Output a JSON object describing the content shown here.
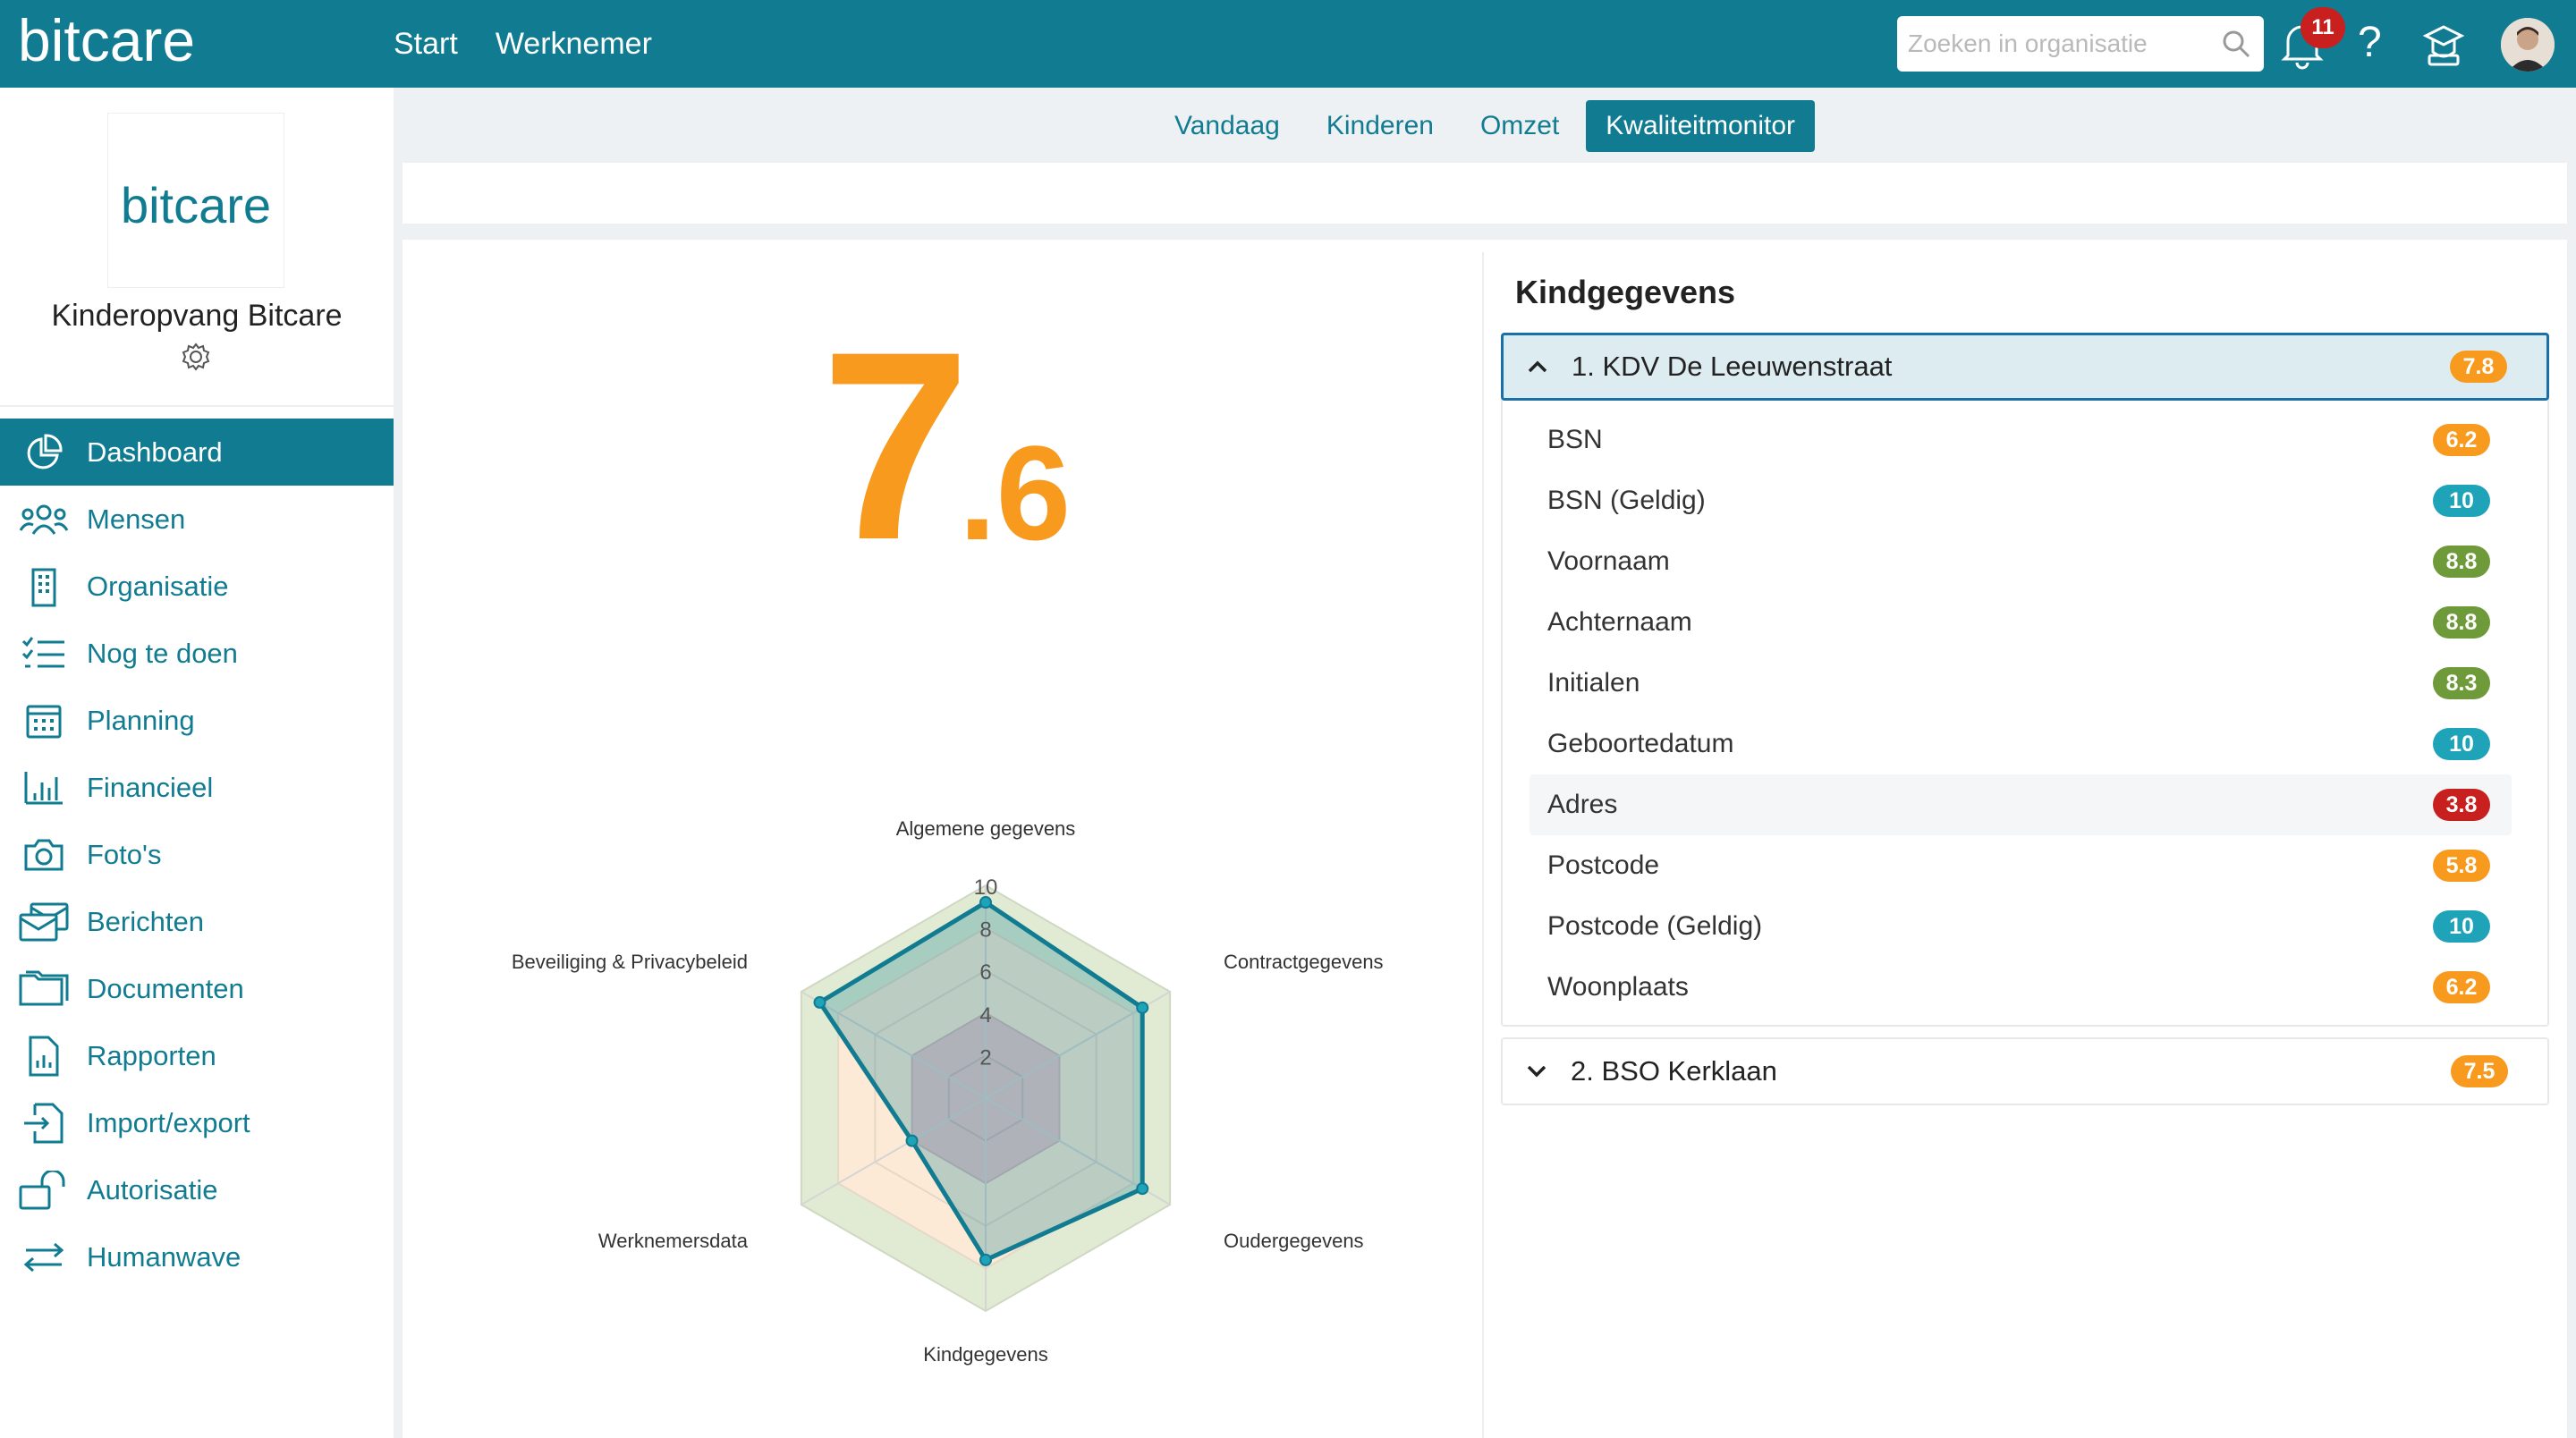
{
  "app": {
    "logo": "bitcare",
    "nav": [
      "Start",
      "Werknemer"
    ],
    "search_placeholder": "Zoeken in organisatie",
    "notifications_count": "11",
    "help": "?",
    "icons": [
      "search-icon",
      "bell-icon",
      "help-icon",
      "graduation-cap-icon",
      "avatar"
    ]
  },
  "sidebar": {
    "logo": "bitcare",
    "org_name": "Kinderopvang Bitcare",
    "items": [
      {
        "label": "Dashboard",
        "icon": "pie-chart-icon",
        "active": true
      },
      {
        "label": "Mensen",
        "icon": "people-icon"
      },
      {
        "label": "Organisatie",
        "icon": "building-icon"
      },
      {
        "label": "Nog te doen",
        "icon": "checklist-icon"
      },
      {
        "label": "Planning",
        "icon": "calendar-icon"
      },
      {
        "label": "Financieel",
        "icon": "bar-chart-icon"
      },
      {
        "label": "Foto's",
        "icon": "camera-icon"
      },
      {
        "label": "Berichten",
        "icon": "messages-icon"
      },
      {
        "label": "Documenten",
        "icon": "folder-icon"
      },
      {
        "label": "Rapporten",
        "icon": "report-icon"
      },
      {
        "label": "Import/export",
        "icon": "import-export-icon"
      },
      {
        "label": "Autorisatie",
        "icon": "unlock-icon"
      },
      {
        "label": "Humanwave",
        "icon": "arrows-icon"
      }
    ]
  },
  "tabs": [
    {
      "label": "Vandaag"
    },
    {
      "label": "Kinderen"
    },
    {
      "label": "Omzet"
    },
    {
      "label": "Kwaliteitmonitor",
      "active": true
    }
  ],
  "score": {
    "integer": "7",
    "decimal": ".6",
    "color": "#f79a1e"
  },
  "chart_data": {
    "type": "radar",
    "axes": [
      "Algemene gegevens",
      "Contractgegevens",
      "Oudergegevens",
      "Kindgegevens",
      "Werknemersdata",
      "Beveiliging & Privacybeleid"
    ],
    "ticks": [
      "2",
      "4",
      "6",
      "8",
      "10"
    ],
    "range": [
      0,
      10
    ],
    "values": [
      9.2,
      8.5,
      8.5,
      7.6,
      4.0,
      9.0
    ],
    "series_color": "#117c91"
  },
  "list": {
    "title": "Kindgegevens",
    "groups": [
      {
        "label": "1. KDV De Leeuwenstraat",
        "score": "7.8",
        "color": "orange",
        "expanded": true,
        "rows": [
          {
            "label": "BSN",
            "score": "6.2",
            "color": "orange"
          },
          {
            "label": "BSN (Geldig)",
            "score": "10",
            "color": "teal"
          },
          {
            "label": "Voornaam",
            "score": "8.8",
            "color": "green"
          },
          {
            "label": "Achternaam",
            "score": "8.8",
            "color": "green"
          },
          {
            "label": "Initialen",
            "score": "8.3",
            "color": "green"
          },
          {
            "label": "Geboortedatum",
            "score": "10",
            "color": "teal"
          },
          {
            "label": "Adres",
            "score": "3.8",
            "color": "red"
          },
          {
            "label": "Postcode",
            "score": "5.8",
            "color": "orange"
          },
          {
            "label": "Postcode (Geldig)",
            "score": "10",
            "color": "teal"
          },
          {
            "label": "Woonplaats",
            "score": "6.2",
            "color": "orange"
          }
        ]
      },
      {
        "label": "2. BSO Kerklaan",
        "score": "7.5",
        "color": "orange",
        "expanded": false,
        "rows": []
      }
    ]
  }
}
